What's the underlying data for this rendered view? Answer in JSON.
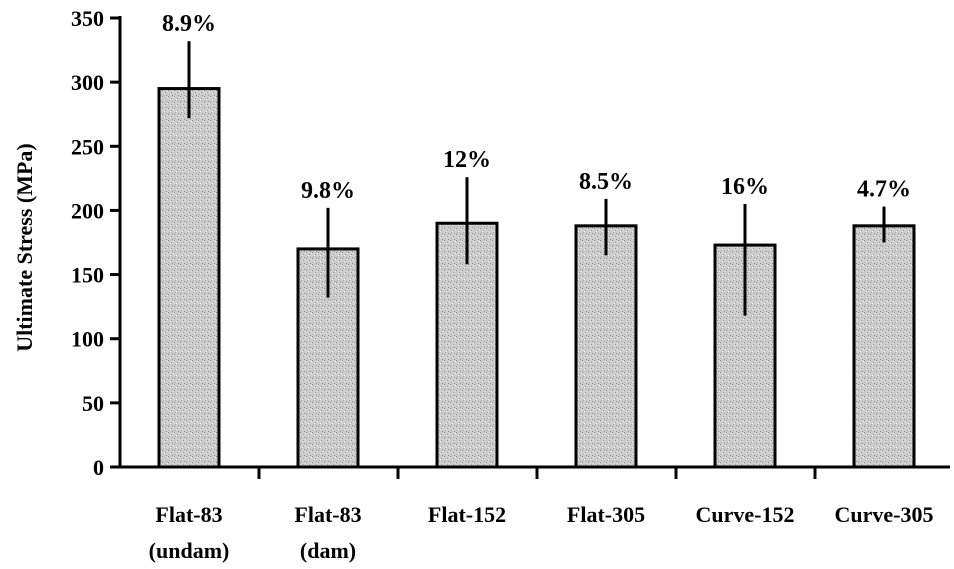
{
  "chart_data": {
    "type": "bar",
    "title": "",
    "xlabel": "",
    "ylabel": "Ultimate Stress (MPa)",
    "ylim": [
      0,
      350
    ],
    "yticks": [
      0,
      50,
      100,
      150,
      200,
      250,
      300,
      350
    ],
    "grid": false,
    "legend": "none",
    "categories": [
      [
        "Flat-83",
        "(undam)"
      ],
      [
        "Flat-83",
        "(dam)"
      ],
      [
        "Flat-152"
      ],
      [
        "Flat-305"
      ],
      [
        "Curve-152"
      ],
      [
        "Curve-305"
      ]
    ],
    "series": [
      {
        "values": [
          295,
          170,
          190,
          188,
          173,
          188
        ],
        "error_low": [
          272,
          132,
          158,
          165,
          118,
          175
        ],
        "error_high": [
          332,
          202,
          226,
          209,
          205,
          203
        ],
        "data_labels": [
          "8.9%",
          "9.8%",
          "12%",
          "8.5%",
          "16%",
          "4.7%"
        ]
      }
    ],
    "colors": {
      "bar_fill": "#c8c8c8",
      "bar_stroke": "#000000"
    }
  }
}
